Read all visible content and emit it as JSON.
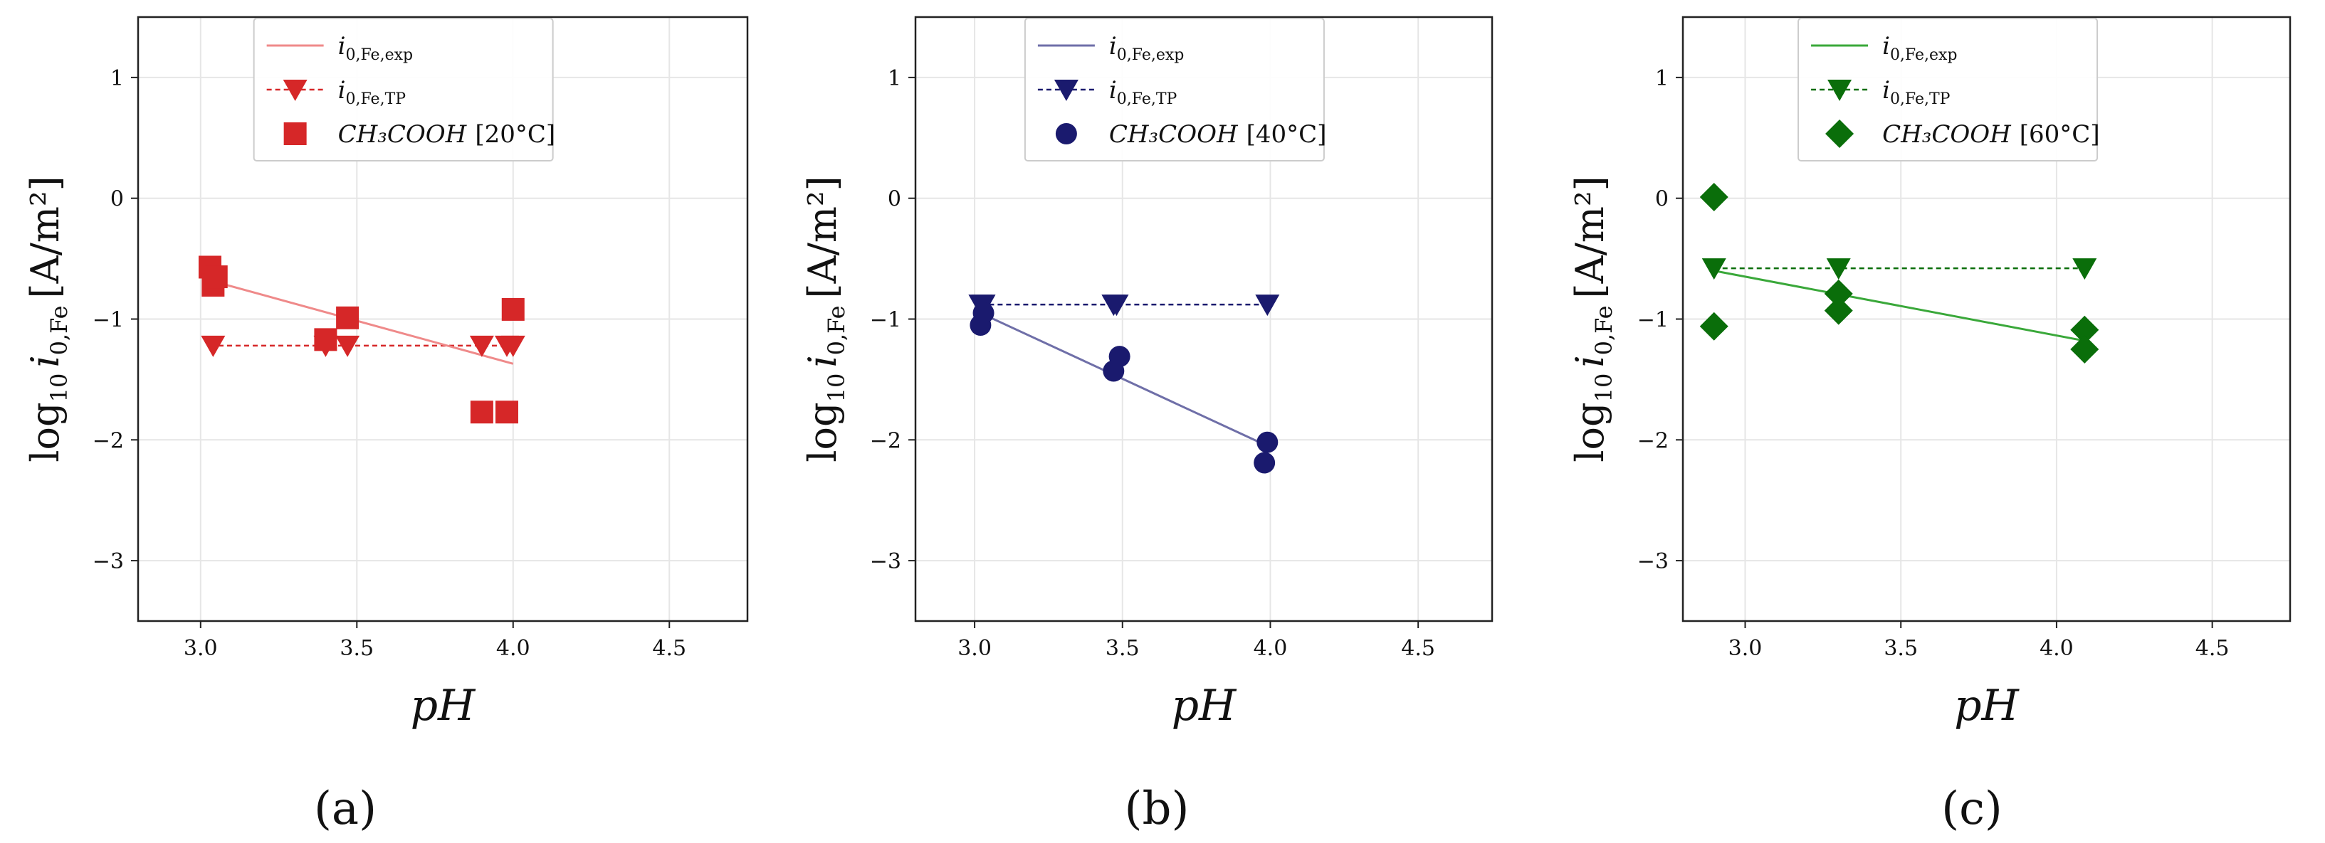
{
  "chart_data": [
    {
      "type": "scatter",
      "panel_label": "(a)",
      "color": "#d62728",
      "fit_color": "#ef8a8a",
      "marker": "square",
      "xlabel": "pH",
      "ylabel": {
        "base": "log",
        "base_sub": "10",
        "var": "i",
        "var_sub": "0,Fe",
        "unit": "[A/m²]"
      },
      "xlim": [
        2.8,
        4.75
      ],
      "ylim": [
        -3.5,
        1.5
      ],
      "xticks": [
        "3.0",
        "3.5",
        "4.0",
        "4.5"
      ],
      "yticks": [
        "1",
        "0",
        "−1",
        "−2",
        "−3"
      ],
      "legend": [
        {
          "symbol": "line",
          "name": "i",
          "sub": "0,Fe,exp"
        },
        {
          "symbol": "triangle",
          "name": "i",
          "sub": "0,Fe,TP"
        },
        {
          "symbol": "data",
          "name": "CH₃COOH",
          "condition": "[20°C]"
        }
      ],
      "fit_line": {
        "x": [
          3.03,
          4.0
        ],
        "y": [
          -0.68,
          -1.37
        ]
      },
      "tp_line": {
        "x": [
          3.03,
          4.0
        ],
        "y": [
          -1.22,
          -1.22
        ]
      },
      "tp_points": {
        "x": [
          3.04,
          3.4,
          3.47,
          3.9,
          3.98,
          4.0
        ],
        "y": [
          -1.22,
          -1.22,
          -1.22,
          -1.22,
          -1.22,
          -1.22
        ]
      },
      "data_points": {
        "x": [
          3.03,
          3.04,
          3.05,
          3.4,
          3.47,
          3.9,
          3.98,
          4.0
        ],
        "y": [
          -0.57,
          -0.72,
          -0.65,
          -1.17,
          -0.99,
          -1.77,
          -1.77,
          -0.92
        ]
      }
    },
    {
      "type": "scatter",
      "panel_label": "(b)",
      "color": "#1a1a6e",
      "fit_color": "#6f6fa8",
      "marker": "circle",
      "xlabel": "pH",
      "ylabel": {
        "base": "log",
        "base_sub": "10",
        "var": "i",
        "var_sub": "0,Fe",
        "unit": "[A/m²]"
      },
      "xlim": [
        2.8,
        4.75
      ],
      "ylim": [
        -3.5,
        1.5
      ],
      "xticks": [
        "3.0",
        "3.5",
        "4.0",
        "4.5"
      ],
      "yticks": [
        "1",
        "0",
        "−1",
        "−2",
        "−3"
      ],
      "legend": [
        {
          "symbol": "line",
          "name": "i",
          "sub": "0,Fe,exp"
        },
        {
          "symbol": "triangle",
          "name": "i",
          "sub": "0,Fe,TP"
        },
        {
          "symbol": "data",
          "name": "CH₃COOH",
          "condition": "[40°C]"
        }
      ],
      "fit_line": {
        "x": [
          3.02,
          3.99
        ],
        "y": [
          -0.95,
          -2.05
        ]
      },
      "tp_line": {
        "x": [
          3.02,
          3.99
        ],
        "y": [
          -0.88,
          -0.88
        ]
      },
      "tp_points": {
        "x": [
          3.02,
          3.03,
          3.47,
          3.48,
          3.99
        ],
        "y": [
          -0.88,
          -0.88,
          -0.88,
          -0.88,
          -0.88
        ]
      },
      "data_points": {
        "x": [
          3.02,
          3.03,
          3.47,
          3.49,
          3.99,
          3.98
        ],
        "y": [
          -1.05,
          -0.95,
          -1.43,
          -1.31,
          -2.02,
          -2.19
        ]
      }
    },
    {
      "type": "scatter",
      "panel_label": "(c)",
      "color": "#0a6e0a",
      "fit_color": "#3aa83a",
      "marker": "diamond",
      "xlabel": "pH",
      "ylabel": {
        "base": "log",
        "base_sub": "10",
        "var": "i",
        "var_sub": "0,Fe",
        "unit": "[A/m²]"
      },
      "xlim": [
        2.8,
        4.75
      ],
      "ylim": [
        -3.5,
        1.5
      ],
      "xticks": [
        "3.0",
        "3.5",
        "4.0",
        "4.5"
      ],
      "yticks": [
        "1",
        "0",
        "−1",
        "−2",
        "−3"
      ],
      "legend": [
        {
          "symbol": "line",
          "name": "i",
          "sub": "0,Fe,exp"
        },
        {
          "symbol": "triangle",
          "name": "i",
          "sub": "0,Fe,TP"
        },
        {
          "symbol": "data",
          "name": "CH₃COOH",
          "condition": "[60°C]"
        }
      ],
      "fit_line": {
        "x": [
          2.9,
          4.09
        ],
        "y": [
          -0.6,
          -1.18
        ]
      },
      "tp_line": {
        "x": [
          2.9,
          4.09
        ],
        "y": [
          -0.58,
          -0.58
        ]
      },
      "tp_points": {
        "x": [
          2.9,
          3.3,
          4.09
        ],
        "y": [
          -0.58,
          -0.58,
          -0.58
        ]
      },
      "data_points": {
        "x": [
          2.9,
          2.9,
          3.3,
          3.3,
          4.09,
          4.09
        ],
        "y": [
          0.01,
          -1.06,
          -0.79,
          -0.93,
          -1.09,
          -1.25
        ]
      }
    }
  ]
}
